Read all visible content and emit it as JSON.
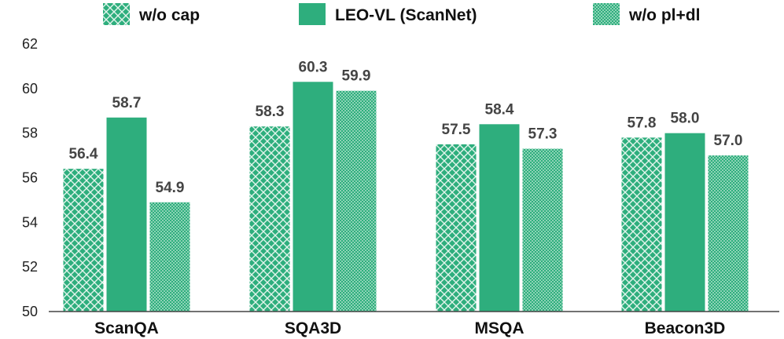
{
  "chart_data": {
    "type": "bar",
    "categories": [
      "ScanQA",
      "SQA3D",
      "MSQA",
      "Beacon3D"
    ],
    "series": [
      {
        "name": "w/o cap",
        "values": [
          56.4,
          58.3,
          57.5,
          57.8
        ],
        "pattern": "crosshatch"
      },
      {
        "name": "LEO-VL (ScanNet)",
        "values": [
          58.7,
          60.3,
          58.4,
          58.0
        ],
        "pattern": "solid"
      },
      {
        "name": "w/o pl+dl",
        "values": [
          54.9,
          59.9,
          57.3,
          57.0
        ],
        "pattern": "dots"
      }
    ],
    "value_labels": [
      [
        "56.4",
        "58.3",
        "57.5",
        "57.8"
      ],
      [
        "58.7",
        "60.3",
        "58.4",
        "58.0"
      ],
      [
        "54.9",
        "59.9",
        "57.3",
        "57.0"
      ]
    ],
    "yticks": [
      "50",
      "52",
      "54",
      "56",
      "58",
      "60",
      "62"
    ],
    "ylim": [
      50,
      62
    ],
    "title": "",
    "xlabel": "",
    "ylabel": "",
    "legend_position": "top",
    "grid": false,
    "colors": {
      "bar": "#2EAE7D",
      "pattern_light": "#E3F4EC",
      "axis": "#444444"
    }
  }
}
